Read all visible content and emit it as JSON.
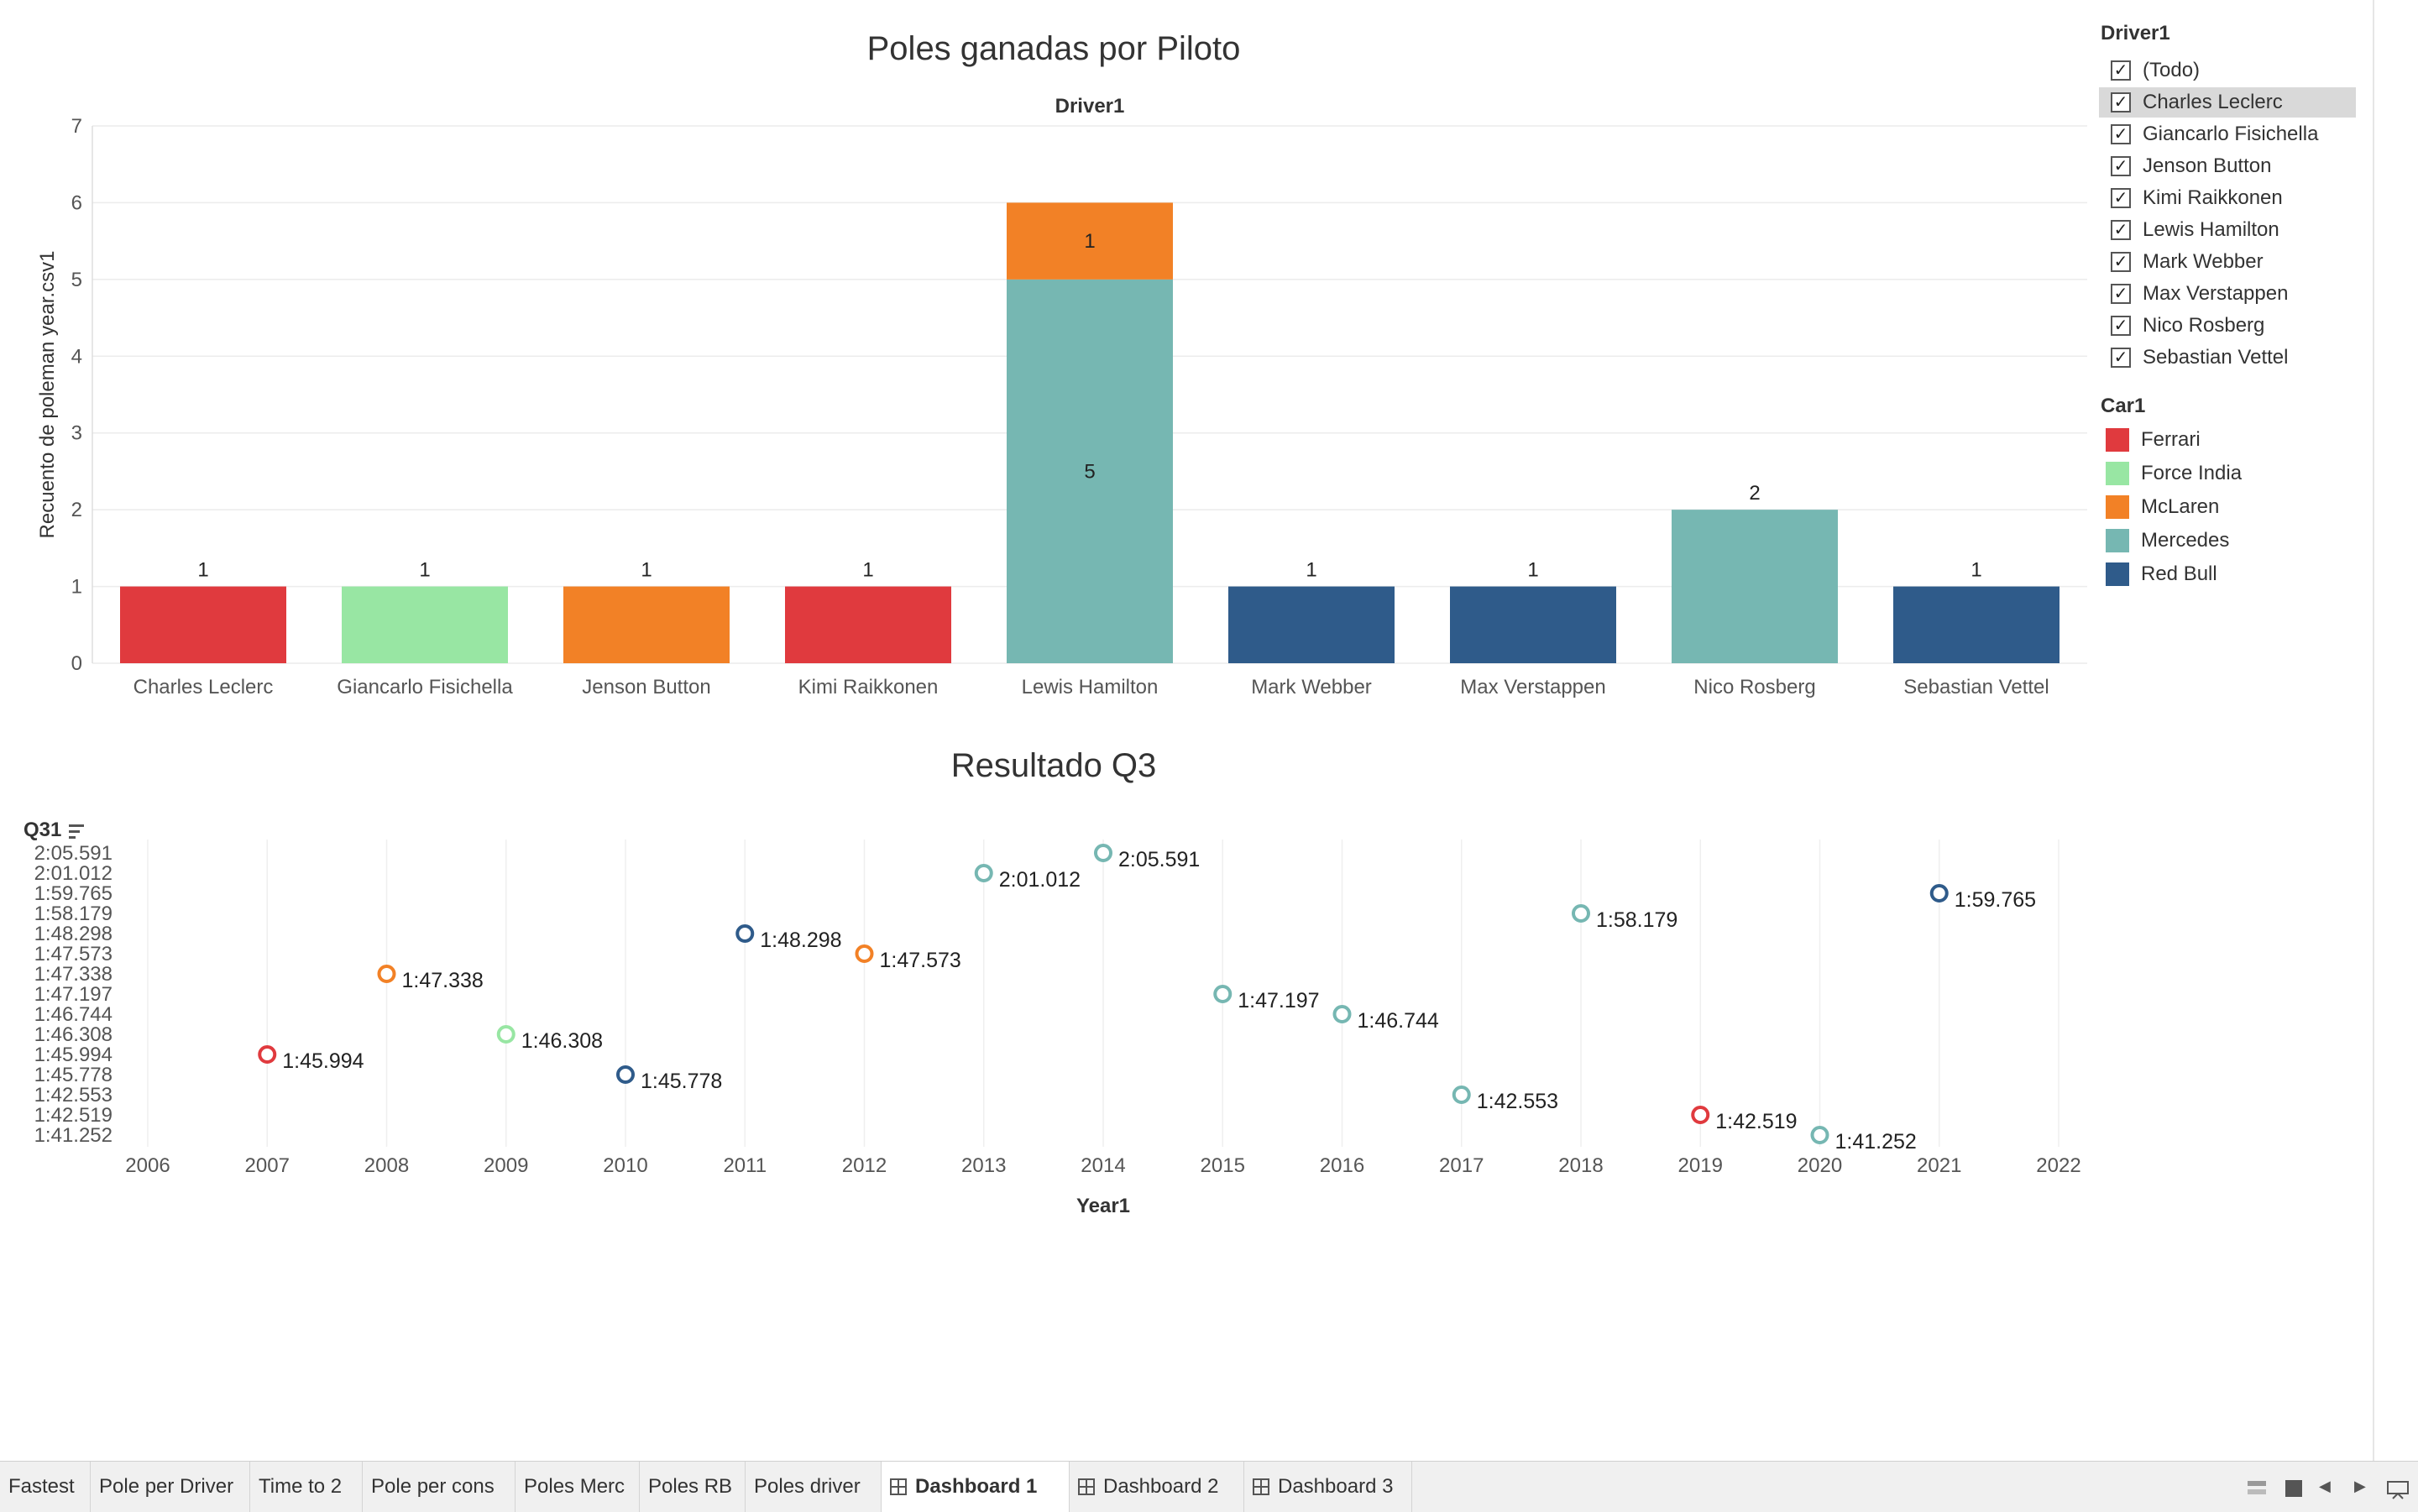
{
  "bar_chart": {
    "title": "Poles ganadas por Piloto",
    "header": "Driver1",
    "ylabel": "Recuento de poleman year.csv1"
  },
  "scatter_chart": {
    "title": "Resultado Q3",
    "field_label": "Q31",
    "xlabel": "Year1"
  },
  "filter_legend": {
    "title": "Driver1",
    "items": [
      "(Todo)",
      "Charles Leclerc",
      "Giancarlo Fisichella",
      "Jenson Button",
      "Kimi Raikkonen",
      "Lewis Hamilton",
      "Mark Webber",
      "Max Verstappen",
      "Nico Rosberg",
      "Sebastian Vettel"
    ],
    "highlighted": "Charles Leclerc",
    "check_glyph": "✓"
  },
  "color_legend": {
    "title": "Car1",
    "items": [
      {
        "label": "Ferrari",
        "color": "#e03a3e"
      },
      {
        "label": "Force India",
        "color": "#98e6a3"
      },
      {
        "label": "McLaren",
        "color": "#f28126"
      },
      {
        "label": "Mercedes",
        "color": "#76b7b2"
      },
      {
        "label": "Red Bull",
        "color": "#2f5b8a"
      }
    ]
  },
  "chart_data": [
    {
      "type": "bar",
      "stacked": true,
      "title": "Poles ganadas por Piloto",
      "xlabel": "Driver1",
      "ylabel": "Recuento de poleman year.csv1",
      "ylim": [
        0,
        7
      ],
      "yticks": [
        "0",
        "1",
        "2",
        "3",
        "4",
        "5",
        "6",
        "7"
      ],
      "categories": [
        "Charles Leclerc",
        "Giancarlo Fisichella",
        "Jenson Button",
        "Kimi Raikkonen",
        "Lewis Hamilton",
        "Mark Webber",
        "Max Verstappen",
        "Nico Rosberg",
        "Sebastian Vettel"
      ],
      "bars": [
        {
          "category": "Charles Leclerc",
          "segments": [
            {
              "car": "Ferrari",
              "value": 1
            }
          ],
          "total_label": "1"
        },
        {
          "category": "Giancarlo Fisichella",
          "segments": [
            {
              "car": "Force India",
              "value": 1
            }
          ],
          "total_label": "1"
        },
        {
          "category": "Jenson Button",
          "segments": [
            {
              "car": "McLaren",
              "value": 1
            }
          ],
          "total_label": "1"
        },
        {
          "category": "Kimi Raikkonen",
          "segments": [
            {
              "car": "Ferrari",
              "value": 1
            }
          ],
          "total_label": "1"
        },
        {
          "category": "Lewis Hamilton",
          "segments": [
            {
              "car": "Mercedes",
              "value": 5,
              "label": "5"
            },
            {
              "car": "McLaren",
              "value": 1,
              "label": "1"
            }
          ],
          "total_label": ""
        },
        {
          "category": "Mark Webber",
          "segments": [
            {
              "car": "Red Bull",
              "value": 1
            }
          ],
          "total_label": "1"
        },
        {
          "category": "Max Verstappen",
          "segments": [
            {
              "car": "Red Bull",
              "value": 1
            }
          ],
          "total_label": "1"
        },
        {
          "category": "Nico Rosberg",
          "segments": [
            {
              "car": "Mercedes",
              "value": 2
            }
          ],
          "total_label": "2"
        },
        {
          "category": "Sebastian Vettel",
          "segments": [
            {
              "car": "Red Bull",
              "value": 1
            }
          ],
          "total_label": "1"
        }
      ],
      "grid": true
    },
    {
      "type": "scatter",
      "title": "Resultado Q3",
      "xlabel": "Year1",
      "ylabel": "Q31",
      "xlim": [
        2006,
        2022
      ],
      "xticks": [
        2006,
        2007,
        2008,
        2009,
        2010,
        2011,
        2012,
        2013,
        2014,
        2015,
        2016,
        2017,
        2018,
        2019,
        2020,
        2021,
        2022
      ],
      "y_categories": [
        "1:41.252",
        "1:42.519",
        "1:42.553",
        "1:45.778",
        "1:45.994",
        "1:46.308",
        "1:46.744",
        "1:47.197",
        "1:47.338",
        "1:47.573",
        "1:48.298",
        "1:58.179",
        "1:59.765",
        "2:01.012",
        "2:05.591"
      ],
      "points": [
        {
          "x": 2007,
          "y": "1:45.994",
          "car": "Ferrari"
        },
        {
          "x": 2008,
          "y": "1:47.338",
          "car": "McLaren"
        },
        {
          "x": 2009,
          "y": "1:46.308",
          "car": "Force India"
        },
        {
          "x": 2010,
          "y": "1:45.778",
          "car": "Red Bull"
        },
        {
          "x": 2011,
          "y": "1:48.298",
          "car": "Red Bull"
        },
        {
          "x": 2012,
          "y": "1:47.573",
          "car": "McLaren"
        },
        {
          "x": 2013,
          "y": "2:01.012",
          "car": "Mercedes"
        },
        {
          "x": 2014,
          "y": "2:05.591",
          "car": "Mercedes"
        },
        {
          "x": 2015,
          "y": "1:47.197",
          "car": "Mercedes"
        },
        {
          "x": 2016,
          "y": "1:46.744",
          "car": "Mercedes"
        },
        {
          "x": 2017,
          "y": "1:42.553",
          "car": "Mercedes"
        },
        {
          "x": 2018,
          "y": "1:58.179",
          "car": "Mercedes"
        },
        {
          "x": 2019,
          "y": "1:42.519",
          "car": "Ferrari"
        },
        {
          "x": 2020,
          "y": "1:41.252",
          "car": "Mercedes"
        },
        {
          "x": 2021,
          "y": "1:59.765",
          "car": "Red Bull"
        }
      ],
      "grid": true
    }
  ],
  "tabs": [
    {
      "label": "Fastest",
      "active": false,
      "icon": ""
    },
    {
      "label": "Pole per Driver",
      "active": false,
      "icon": ""
    },
    {
      "label": "Time to 2",
      "active": false,
      "icon": ""
    },
    {
      "label": "Pole per cons",
      "active": false,
      "icon": ""
    },
    {
      "label": "Poles Merc",
      "active": false,
      "icon": ""
    },
    {
      "label": "Poles RB",
      "active": false,
      "icon": ""
    },
    {
      "label": "Poles driver",
      "active": false,
      "icon": ""
    },
    {
      "label": "Dashboard 1",
      "active": true,
      "icon": "dashboard-icon"
    },
    {
      "label": "Dashboard 2",
      "active": false,
      "icon": "dashboard-icon"
    },
    {
      "label": "Dashboard 3",
      "active": false,
      "icon": "dashboard-icon"
    }
  ],
  "controls": {
    "grid_view_icon": "grid-view-icon",
    "filmstrip_icon": "filmstrip-icon",
    "prev_icon": "◀",
    "next_icon": "▶",
    "presentation_icon": "presentation-icon"
  }
}
